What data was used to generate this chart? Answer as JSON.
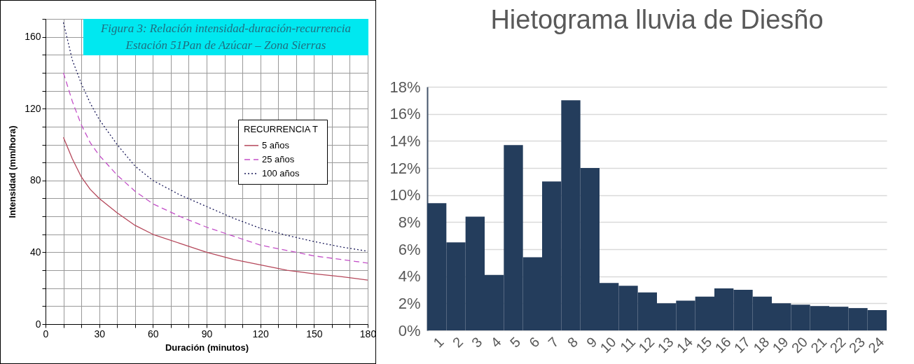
{
  "chart_data": [
    {
      "type": "line",
      "title": "Figura 3: Relación intensidad-duración-recurrencia",
      "subtitle": "Estación 51Pan de Azúcar – Zona Sierras",
      "xlabel": "Duración (minutos)",
      "ylabel": "Intensidad (mm/hora)",
      "legend_title": "RECURRENCIA  T",
      "x": [
        10,
        15,
        20,
        25,
        30,
        40,
        50,
        60,
        75,
        90,
        105,
        120,
        135,
        150,
        165,
        180
      ],
      "series": [
        {
          "name": "5 años",
          "color": "#b5475a",
          "line_style": "solid",
          "values": [
            104,
            92,
            82,
            75,
            70,
            62,
            55,
            50,
            45,
            40,
            36,
            33,
            30,
            28,
            26.5,
            24.5
          ]
        },
        {
          "name": "25 años",
          "color": "#c34fc8",
          "line_style": "dashed",
          "values": [
            140,
            124,
            111,
            101,
            94,
            83,
            74,
            67,
            60,
            54,
            49,
            44,
            41,
            38,
            36,
            34
          ]
        },
        {
          "name": "100 años",
          "color": "#1a1a5a",
          "line_style": "dotted",
          "values": [
            168,
            147,
            134,
            123,
            114,
            100,
            88,
            80,
            72,
            65.5,
            59,
            53.4,
            49.4,
            46,
            43,
            40.6
          ]
        }
      ],
      "xlim": [
        0,
        180
      ],
      "ylim": [
        0,
        170
      ],
      "xticks": [
        0,
        {
          "value": 10,
          "label": null
        },
        {
          "value": 20,
          "label": null
        },
        30,
        {
          "value": 40,
          "label": null
        },
        {
          "value": 50,
          "label": null
        },
        60,
        {
          "value": 70,
          "label": null
        },
        {
          "value": 80,
          "label": null
        },
        90,
        {
          "value": 100,
          "label": null
        },
        {
          "value": 110,
          "label": null
        },
        120,
        {
          "value": 130,
          "label": null
        },
        {
          "value": 140,
          "label": null
        },
        150,
        {
          "value": 160,
          "label": null
        },
        {
          "value": 170,
          "label": null
        },
        180
      ],
      "yticks": [
        0,
        {
          "value": 10,
          "label": null
        },
        {
          "value": 20,
          "label": null
        },
        {
          "value": 30,
          "label": null
        },
        40,
        {
          "value": 50,
          "label": null
        },
        {
          "value": 60,
          "label": null
        },
        {
          "value": 70,
          "label": null
        },
        80,
        {
          "value": 90,
          "label": null
        },
        {
          "value": 100,
          "label": null
        },
        {
          "value": 110,
          "label": null
        },
        120,
        {
          "value": 130,
          "label": null
        },
        {
          "value": 140,
          "label": null
        },
        {
          "value": 150,
          "label": null
        },
        160,
        {
          "value": 170,
          "label": null
        }
      ],
      "grid": true,
      "legend": "right",
      "marker": "none"
    },
    {
      "type": "bar",
      "title": "Hietograma lluvia de Diesño",
      "categories": [
        "1",
        "2",
        "3",
        "4",
        "5",
        "6",
        "7",
        "8",
        "9",
        "10",
        "11",
        "12",
        "13",
        "14",
        "15",
        "16",
        "17",
        "18",
        "19",
        "20",
        "21",
        "22",
        "23",
        "24"
      ],
      "values": [
        9.4,
        6.5,
        8.4,
        4.1,
        13.7,
        5.4,
        11.0,
        17.0,
        12.0,
        3.5,
        3.3,
        2.8,
        2.0,
        2.2,
        2.5,
        3.1,
        3.0,
        2.5,
        2.0,
        1.9,
        1.8,
        1.75,
        1.65,
        1.5
      ],
      "color": "#243d5c",
      "ylim": [
        0,
        18
      ],
      "yticks": [
        {
          "value": 0,
          "label": "0%"
        },
        {
          "value": 2,
          "label": "2%"
        },
        {
          "value": 4,
          "label": "4%"
        },
        {
          "value": 6,
          "label": "6%"
        },
        {
          "value": 8,
          "label": "8%"
        },
        {
          "value": 10,
          "label": "10%"
        },
        {
          "value": 12,
          "label": "12%"
        },
        {
          "value": 14,
          "label": "14%"
        },
        {
          "value": 16,
          "label": "16%"
        },
        {
          "value": 18,
          "label": "18%"
        }
      ],
      "grid": "y"
    }
  ]
}
